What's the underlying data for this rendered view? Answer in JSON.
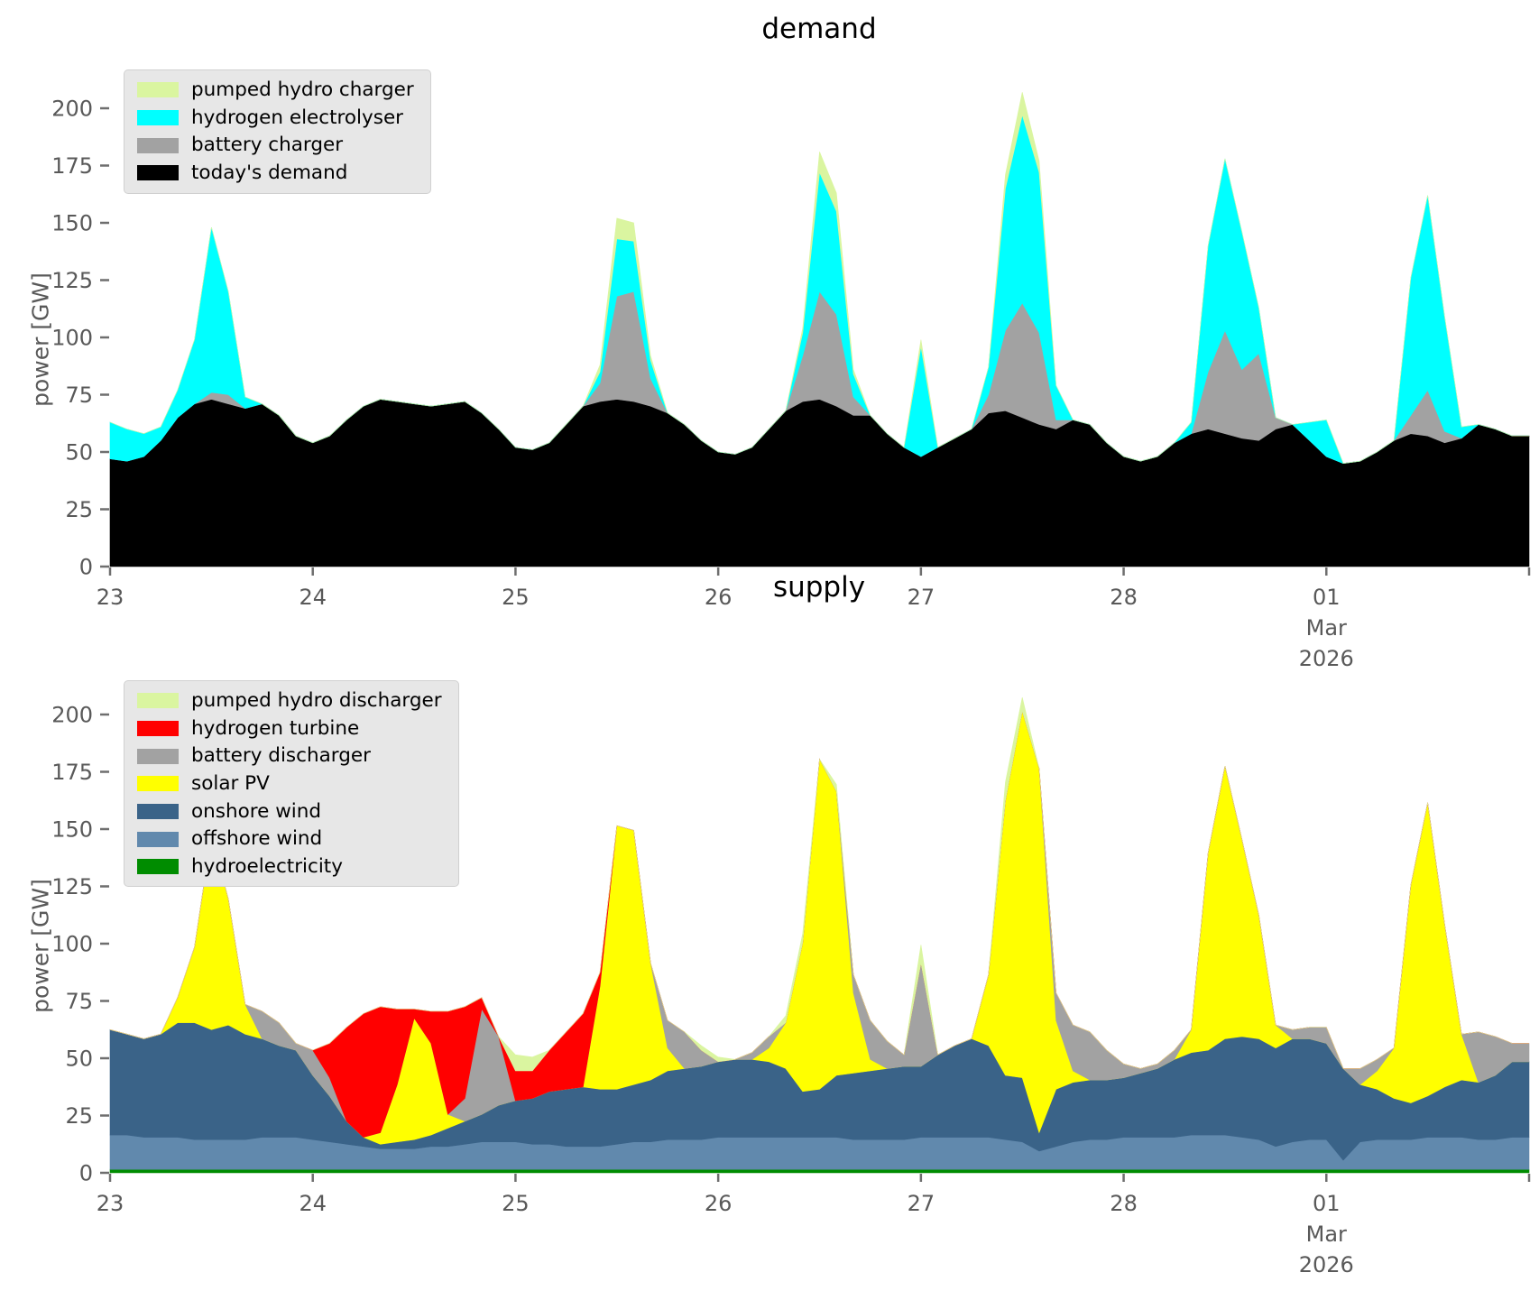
{
  "figure": {
    "background": "#ffffff"
  },
  "chart_data": [
    {
      "id": "demand",
      "type": "area",
      "title": "demand",
      "ylabel": "power [GW]",
      "ylim": [
        0,
        220
      ],
      "yticks": [
        0,
        25,
        50,
        75,
        100,
        125,
        150,
        175,
        200
      ],
      "x_step_hours": 2,
      "x_day_labels": [
        "23",
        "24",
        "25",
        "26",
        "27",
        "28",
        "01",
        ""
      ],
      "x_month_label": "Mar",
      "x_year_label": "2026",
      "month_label_day_index": 6,
      "legend_order_top_to_bottom": [
        "pumped hydro charger",
        "hydrogen electrolyser",
        "battery charger",
        "today's demand"
      ],
      "legend_colors_top_to_bottom": [
        "#daf5a0",
        "#00ffff",
        "#a2a2a2",
        "#000000"
      ],
      "series": [
        {
          "name": "today's demand",
          "color": "#000000",
          "values": [
            47,
            46,
            48,
            55,
            65,
            71,
            73,
            71,
            69,
            71,
            66,
            57,
            54,
            57,
            64,
            70,
            73,
            72,
            71,
            70,
            71,
            72,
            67,
            60,
            52,
            51,
            54,
            62,
            70,
            72,
            73,
            72,
            70,
            67,
            62,
            55,
            50,
            49,
            52,
            60,
            68,
            72,
            73,
            70,
            66,
            66,
            58,
            52,
            48,
            52,
            56,
            60,
            67,
            68,
            65,
            62,
            60,
            64,
            62,
            54,
            48,
            46,
            48,
            54,
            58,
            60,
            58,
            56,
            55,
            60,
            62,
            55,
            48,
            45,
            46,
            50,
            55,
            58,
            57,
            54,
            56,
            62,
            60,
            57,
            57
          ]
        },
        {
          "name": "battery charger",
          "color": "#a2a2a2",
          "values": [
            0,
            0,
            0,
            0,
            0,
            0,
            3,
            4,
            0,
            0,
            0,
            0,
            0,
            0,
            0,
            0,
            0,
            0,
            0,
            0,
            0,
            0,
            0,
            0,
            0,
            0,
            0,
            0,
            0,
            8,
            45,
            48,
            12,
            0,
            0,
            0,
            0,
            0,
            0,
            0,
            0,
            20,
            47,
            40,
            8,
            0,
            0,
            0,
            0,
            0,
            0,
            0,
            8,
            35,
            50,
            40,
            4,
            0,
            0,
            0,
            0,
            0,
            0,
            0,
            0,
            25,
            45,
            30,
            38,
            5,
            0,
            0,
            0,
            0,
            0,
            0,
            0,
            8,
            20,
            5,
            0,
            0,
            0,
            0,
            0
          ]
        },
        {
          "name": "hydrogen electrolyser",
          "color": "#00ffff",
          "values": [
            16,
            14,
            10,
            6,
            12,
            28,
            72,
            45,
            5,
            0,
            0,
            0,
            0,
            0,
            0,
            0,
            0,
            0,
            0,
            0,
            0,
            0,
            0,
            0,
            0,
            0,
            0,
            0,
            0,
            5,
            25,
            22,
            8,
            0,
            0,
            0,
            0,
            0,
            0,
            0,
            0,
            10,
            52,
            45,
            10,
            0,
            0,
            0,
            48,
            0,
            0,
            0,
            12,
            62,
            82,
            70,
            15,
            0,
            0,
            0,
            0,
            0,
            0,
            0,
            5,
            55,
            75,
            60,
            20,
            0,
            0,
            8,
            16,
            0,
            0,
            0,
            0,
            60,
            85,
            50,
            5,
            0,
            0,
            0,
            0
          ]
        },
        {
          "name": "pumped hydro charger",
          "color": "#daf5a0",
          "values": [
            0,
            0,
            0,
            0,
            0,
            0,
            0,
            0,
            0,
            0,
            0,
            0,
            0,
            0,
            0,
            0,
            0,
            0,
            0,
            0,
            0,
            0,
            0,
            0,
            0,
            0,
            0,
            0,
            0,
            3,
            9,
            8,
            2,
            0,
            0,
            0,
            0,
            0,
            0,
            0,
            0,
            2,
            9,
            8,
            2,
            0,
            0,
            0,
            3,
            0,
            0,
            0,
            0,
            6,
            10,
            5,
            0,
            0,
            0,
            0,
            0,
            0,
            0,
            0,
            0,
            0,
            0,
            0,
            0,
            0,
            0,
            0,
            0,
            0,
            0,
            0,
            0,
            0,
            0,
            0,
            0,
            0,
            0,
            0,
            0
          ]
        }
      ]
    },
    {
      "id": "supply",
      "type": "area",
      "title": "supply",
      "ylabel": "power [GW]",
      "ylim": [
        0,
        220
      ],
      "yticks": [
        0,
        25,
        50,
        75,
        100,
        125,
        150,
        175,
        200
      ],
      "x_step_hours": 2,
      "x_day_labels": [
        "23",
        "24",
        "25",
        "26",
        "27",
        "28",
        "01",
        ""
      ],
      "x_month_label": "Mar",
      "x_year_label": "2026",
      "month_label_day_index": 6,
      "legend_order_top_to_bottom": [
        "pumped hydro discharger",
        "hydrogen turbine",
        "battery discharger",
        "solar PV",
        "onshore wind",
        "offshore wind",
        "hydroelectricity"
      ],
      "legend_colors_top_to_bottom": [
        "#daf5a0",
        "#ff0000",
        "#a2a2a2",
        "#ffff00",
        "#3a6388",
        "#6189ad",
        "#008c00"
      ],
      "series": [
        {
          "name": "hydroelectricity",
          "color": "#008c00",
          "values": [
            1.5,
            1.5,
            1.5,
            1.5,
            1.5,
            1.5,
            1.5,
            1.5,
            1.5,
            1.5,
            1.5,
            1.5,
            1.5,
            1.5,
            1.5,
            1.5,
            1.5,
            1.5,
            1.5,
            1.5,
            1.5,
            1.5,
            1.5,
            1.5,
            1.5,
            1.5,
            1.5,
            1.5,
            1.5,
            1.5,
            1.5,
            1.5,
            1.5,
            1.5,
            1.5,
            1.5,
            1.5,
            1.5,
            1.5,
            1.5,
            1.5,
            1.5,
            1.5,
            1.5,
            1.5,
            1.5,
            1.5,
            1.5,
            1.5,
            1.5,
            1.5,
            1.5,
            1.5,
            1.5,
            1.5,
            1.5,
            1.5,
            1.5,
            1.5,
            1.5,
            1.5,
            1.5,
            1.5,
            1.5,
            1.5,
            1.5,
            1.5,
            1.5,
            1.5,
            1.5,
            1.5,
            1.5,
            1.5,
            1.5,
            1.5,
            1.5,
            1.5,
            1.5,
            1.5,
            1.5,
            1.5,
            1.5,
            1.5,
            1.5,
            1.5
          ]
        },
        {
          "name": "offshore wind",
          "color": "#6189ad",
          "values": [
            15,
            15,
            14,
            14,
            14,
            13,
            13,
            13,
            13,
            14,
            14,
            14,
            13,
            12,
            11,
            10,
            9,
            9,
            9,
            10,
            10,
            11,
            12,
            12,
            12,
            11,
            11,
            10,
            10,
            10,
            11,
            12,
            12,
            13,
            13,
            13,
            14,
            14,
            14,
            14,
            14,
            14,
            14,
            14,
            13,
            13,
            13,
            13,
            14,
            14,
            14,
            14,
            14,
            13,
            12,
            8,
            10,
            12,
            13,
            13,
            14,
            14,
            14,
            14,
            15,
            15,
            15,
            14,
            13,
            10,
            12,
            13,
            13,
            4,
            12,
            13,
            13,
            13,
            14,
            14,
            14,
            13,
            13,
            14,
            14
          ]
        },
        {
          "name": "onshore wind",
          "color": "#3a6388",
          "values": [
            46,
            44,
            43,
            45,
            50,
            51,
            48,
            50,
            46,
            43,
            40,
            38,
            28,
            20,
            10,
            4,
            2,
            3,
            4,
            5,
            8,
            10,
            12,
            16,
            18,
            20,
            23,
            25,
            26,
            25,
            24,
            25,
            27,
            30,
            31,
            32,
            33,
            34,
            34,
            33,
            30,
            20,
            21,
            27,
            29,
            30,
            31,
            32,
            31,
            36,
            40,
            43,
            40,
            28,
            28,
            8,
            25,
            26,
            26,
            26,
            26,
            28,
            30,
            34,
            36,
            37,
            42,
            44,
            44,
            43,
            45,
            44,
            42,
            40,
            25,
            22,
            18,
            16,
            18,
            22,
            25,
            25,
            28,
            33,
            33
          ]
        },
        {
          "name": "solar PV",
          "color": "#ffff00",
          "values": [
            0,
            0,
            0,
            0,
            11,
            33,
            85,
            55,
            13,
            0,
            0,
            0,
            0,
            0,
            0,
            0,
            5,
            25,
            53,
            40,
            6,
            0,
            0,
            0,
            0,
            0,
            0,
            0,
            0,
            45,
            115,
            111,
            51,
            10,
            0,
            0,
            0,
            0,
            0,
            6,
            20,
            65,
            144,
            124,
            35,
            5,
            0,
            0,
            0,
            0,
            0,
            0,
            31,
            120,
            160,
            159,
            30,
            5,
            0,
            0,
            0,
            0,
            0,
            0,
            10,
            86,
            119,
            86,
            54,
            10,
            0,
            0,
            0,
            0,
            0,
            8,
            22,
            95,
            128,
            71,
            20,
            0,
            0,
            0,
            0
          ]
        },
        {
          "name": "battery discharger",
          "color": "#a2a2a2",
          "values": [
            0,
            0,
            0,
            0,
            0,
            0,
            0,
            0,
            0,
            12,
            10,
            3,
            11,
            8,
            0,
            0,
            0,
            0,
            0,
            0,
            0,
            10,
            46,
            30,
            0,
            0,
            0,
            0,
            0,
            0,
            0,
            0,
            0,
            12,
            16,
            7,
            0,
            0,
            3,
            5,
            0,
            0,
            0,
            0,
            8,
            17,
            12,
            5,
            45,
            0,
            0,
            0,
            0,
            0,
            0,
            0,
            12,
            20,
            21,
            13,
            6,
            2,
            2,
            4,
            0,
            0,
            0,
            0,
            0,
            0,
            4,
            5,
            7,
            0,
            7,
            5,
            0,
            0,
            0,
            0,
            0,
            22,
            17,
            8,
            8
          ]
        },
        {
          "name": "hydrogen turbine",
          "color": "#ff0000",
          "values": [
            0,
            0,
            0,
            0,
            0,
            0,
            0,
            0,
            0,
            0,
            0,
            0,
            0,
            15,
            41,
            54,
            55,
            33,
            4,
            14,
            45,
            40,
            5,
            0,
            13,
            12,
            18,
            25,
            32,
            6,
            0,
            0,
            0,
            0,
            0,
            0,
            0,
            0,
            0,
            0,
            0,
            0,
            0,
            0,
            0,
            0,
            0,
            0,
            0,
            0,
            0,
            0,
            0,
            0,
            0,
            0,
            0,
            0,
            0,
            0,
            0,
            0,
            0,
            0,
            0,
            0,
            0,
            0,
            0,
            0,
            0,
            0,
            0,
            0,
            0,
            0,
            0,
            0,
            0,
            0,
            0,
            0,
            0,
            0,
            0
          ]
        },
        {
          "name": "pumped hydro discharger",
          "color": "#daf5a0",
          "values": [
            0,
            0,
            0,
            0,
            0,
            0,
            0,
            0,
            0,
            0,
            0,
            0,
            0,
            0,
            0,
            0,
            0,
            0,
            0,
            0,
            0,
            0,
            0,
            0,
            7,
            6,
            0,
            0,
            0,
            0,
            0,
            0,
            0,
            0,
            0,
            2,
            2,
            0,
            0,
            0,
            3,
            4,
            0,
            3,
            0,
            0,
            0,
            0,
            8,
            0,
            0,
            0,
            0,
            8,
            6,
            0,
            0,
            0,
            0,
            0,
            0,
            0,
            0,
            0,
            0,
            0,
            0,
            0,
            0,
            0,
            0,
            0,
            0,
            0,
            0,
            0,
            0,
            0,
            0,
            0,
            0,
            0,
            0,
            0,
            0
          ]
        }
      ]
    }
  ]
}
